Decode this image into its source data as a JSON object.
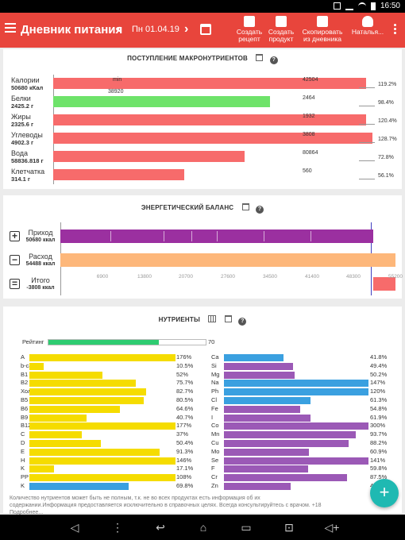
{
  "status_bar": {
    "time": "16:50"
  },
  "app_bar": {
    "title": "Дневник питания",
    "date": "Пн 01.04.19",
    "prev_icon": "chevron-left-icon",
    "next_icon": "chevron-right-icon",
    "actions": [
      {
        "label1": "Создать",
        "label2": "рецепт",
        "icon": "recipe-icon"
      },
      {
        "label1": "Создать",
        "label2": "продукт",
        "icon": "product-icon"
      },
      {
        "label1": "Скопировать",
        "label2": "из дневника",
        "icon": "copy-icon"
      }
    ],
    "user": "Наталья..."
  },
  "macros": {
    "title": "ПОСТУПЛЕНИЕ МАКРОНУТРИЕНТОВ",
    "rows": [
      {
        "name": "Калории",
        "amount": "50680 кКал",
        "value_label": "42504",
        "pct": "119.2%",
        "fill": 0.98,
        "color": "#f76b6b",
        "min_label": "min",
        "min_value": "38920"
      },
      {
        "name": "Белки",
        "amount": "2425.2 г",
        "value_label": "2464",
        "pct": "98.4%",
        "fill": 0.68,
        "color": "#6ee36a"
      },
      {
        "name": "Жиры",
        "amount": "2325.6 г",
        "value_label": "1932",
        "pct": "120.4%",
        "fill": 0.98,
        "color": "#f76b6b"
      },
      {
        "name": "Углеводы",
        "amount": "4902.3 г",
        "value_label": "3808",
        "pct": "128.7%",
        "fill": 1.0,
        "color": "#f76b6b"
      },
      {
        "name": "Вода",
        "amount": "58836.818 г",
        "value_label": "80864",
        "pct": "72.8%",
        "fill": 0.6,
        "color": "#f76b6b"
      },
      {
        "name": "Клетчатка",
        "amount": "314.1 г",
        "value_label": "560",
        "pct": "56.1%",
        "fill": 0.41,
        "color": "#f76b6b"
      }
    ]
  },
  "energy": {
    "title": "ЭНЕРГЕТИЧЕСКИЙ БАЛАНС",
    "rows": [
      {
        "sign": "+",
        "name": "Приход",
        "amount": "50680 ккал",
        "color": "#9b30a0",
        "start": 0.0,
        "end": 0.934
      },
      {
        "sign": "−",
        "name": "Расход",
        "amount": "54488 ккал",
        "color": "#fdb77a",
        "start": 0.0,
        "end": 1.0
      },
      {
        "sign": "=",
        "name": "Итого",
        "amount": "-3808 ккал",
        "color": "#f76b6b",
        "start": 0.934,
        "end": 1.0
      }
    ],
    "ticks": [
      "6900",
      "13800",
      "20700",
      "27600",
      "34500",
      "41400",
      "48300",
      "55200"
    ],
    "tick_max": 55200
  },
  "nutrients": {
    "title": "НУТРИЕНТЫ",
    "rating_label": "Рейтинг",
    "rating_value": "70",
    "rating_fraction": 0.7,
    "left": [
      {
        "name": "A",
        "pct": "176%",
        "fill": 1.0,
        "color": "#f5dc00"
      },
      {
        "name": "b-car",
        "pct": "10.5%",
        "fill": 0.1,
        "color": "#f5dc00"
      },
      {
        "name": "B1",
        "pct": "52%",
        "fill": 0.5,
        "color": "#f5dc00"
      },
      {
        "name": "B2",
        "pct": "75.7%",
        "fill": 0.73,
        "color": "#f5dc00"
      },
      {
        "name": "Холин",
        "pct": "82.7%",
        "fill": 0.8,
        "color": "#f5dc00"
      },
      {
        "name": "B5",
        "pct": "80.5%",
        "fill": 0.78,
        "color": "#f5dc00"
      },
      {
        "name": "B6",
        "pct": "64.6%",
        "fill": 0.62,
        "color": "#f5dc00"
      },
      {
        "name": "B9",
        "pct": "40.7%",
        "fill": 0.39,
        "color": "#f5dc00"
      },
      {
        "name": "B12",
        "pct": "177%",
        "fill": 1.0,
        "color": "#f5dc00"
      },
      {
        "name": "C",
        "pct": "37%",
        "fill": 0.36,
        "color": "#f5dc00"
      },
      {
        "name": "D",
        "pct": "50.4%",
        "fill": 0.49,
        "color": "#f5dc00"
      },
      {
        "name": "E",
        "pct": "91.3%",
        "fill": 0.89,
        "color": "#f5dc00"
      },
      {
        "name": "H",
        "pct": "146%",
        "fill": 1.0,
        "color": "#f5dc00"
      },
      {
        "name": "K",
        "pct": "17.1%",
        "fill": 0.17,
        "color": "#f5dc00"
      },
      {
        "name": "PP",
        "pct": "108%",
        "fill": 1.0,
        "color": "#f5dc00"
      },
      {
        "name": "K",
        "pct": "69.8%",
        "fill": 0.68,
        "color": "#3aa0e0"
      }
    ],
    "right": [
      {
        "name": "Ca",
        "pct": "41.8%",
        "fill": 0.41,
        "color": "#3aa0e0"
      },
      {
        "name": "Si",
        "pct": "49.4%",
        "fill": 0.48,
        "color": "#9b59b6"
      },
      {
        "name": "Mg",
        "pct": "50.2%",
        "fill": 0.49,
        "color": "#9b59b6"
      },
      {
        "name": "Na",
        "pct": "147%",
        "fill": 1.0,
        "color": "#3aa0e0"
      },
      {
        "name": "Ph",
        "pct": "120%",
        "fill": 1.0,
        "color": "#3aa0e0"
      },
      {
        "name": "Cl",
        "pct": "61.3%",
        "fill": 0.6,
        "color": "#3aa0e0"
      },
      {
        "name": "Fe",
        "pct": "54.8%",
        "fill": 0.53,
        "color": "#9b59b6"
      },
      {
        "name": "I",
        "pct": "61.9%",
        "fill": 0.6,
        "color": "#9b59b6"
      },
      {
        "name": "Co",
        "pct": "300%",
        "fill": 1.0,
        "color": "#9b59b6"
      },
      {
        "name": "Mn",
        "pct": "93.7%",
        "fill": 0.91,
        "color": "#9b59b6"
      },
      {
        "name": "Cu",
        "pct": "88.2%",
        "fill": 0.86,
        "color": "#9b59b6"
      },
      {
        "name": "Mo",
        "pct": "60.9%",
        "fill": 0.59,
        "color": "#9b59b6"
      },
      {
        "name": "Se",
        "pct": "141%",
        "fill": 1.0,
        "color": "#9b59b6"
      },
      {
        "name": "F",
        "pct": "59.8%",
        "fill": 0.58,
        "color": "#9b59b6"
      },
      {
        "name": "Cr",
        "pct": "87.5%",
        "fill": 0.85,
        "color": "#9b59b6"
      },
      {
        "name": "Zn",
        "pct": "4",
        "fill": 0.46,
        "color": "#9b59b6"
      }
    ],
    "note": "Количество нутриентов может быть не полным, т.к. не во всех продуктах есть информация об их содержании.Информация предоставляется исключительно в справочных целях. Всегда консультируйтесь с врачом. +18 Подробнее..."
  },
  "fab_label": "+"
}
